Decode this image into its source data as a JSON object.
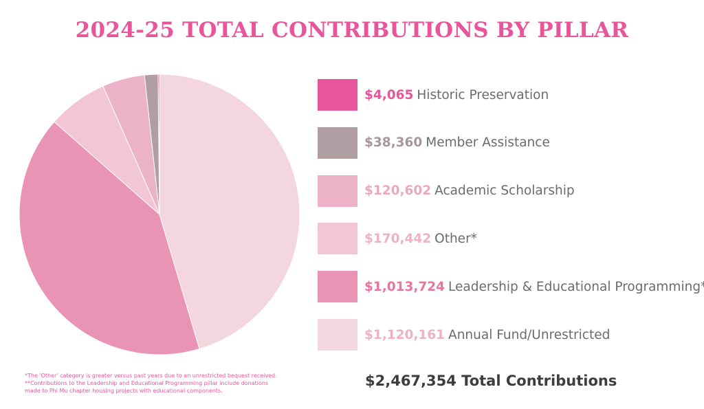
{
  "chart_data": {
    "type": "pie",
    "title": "2024-25 TOTAL CONTRIBUTIONS BY PILLAR",
    "slices": [
      {
        "label": "Historic Preservation",
        "amount": "$4,065",
        "value": 4065,
        "color": "#e8559b",
        "amount_color": "#e8559b"
      },
      {
        "label": "Member Assistance",
        "amount": "$38,360",
        "value": 38360,
        "color": "#b09ea3",
        "amount_color": "#a6969b"
      },
      {
        "label": "Academic Scholarship",
        "amount": "$120,602",
        "value": 120602,
        "color": "#ecb3c8",
        "amount_color": "#eaa8c0"
      },
      {
        "label": "Other*",
        "amount": "$170,442",
        "value": 170442,
        "color": "#f2c6d5",
        "amount_color": "#eeb2c6"
      },
      {
        "label": "Leadership & Educational Programming**",
        "amount": "$1,013,724",
        "value": 1013724,
        "color": "#ea94b5",
        "amount_color": "#e8749f"
      },
      {
        "label": "Annual Fund/Unrestricted",
        "amount": "$1,120,161",
        "value": 1120161,
        "color": "#f4d6de",
        "amount_color": "#eeb0c4"
      }
    ],
    "total": {
      "amount": "$2,467,354",
      "label": "Total Contributions"
    }
  },
  "footnotes": [
    "*The 'Other' category is greater versus past years due to an unrestricted bequest received.",
    "**Contributions to the Leadership and Educational Programming pillar include donations",
    "made to Phi Mu chapter housing projects with educational components."
  ]
}
